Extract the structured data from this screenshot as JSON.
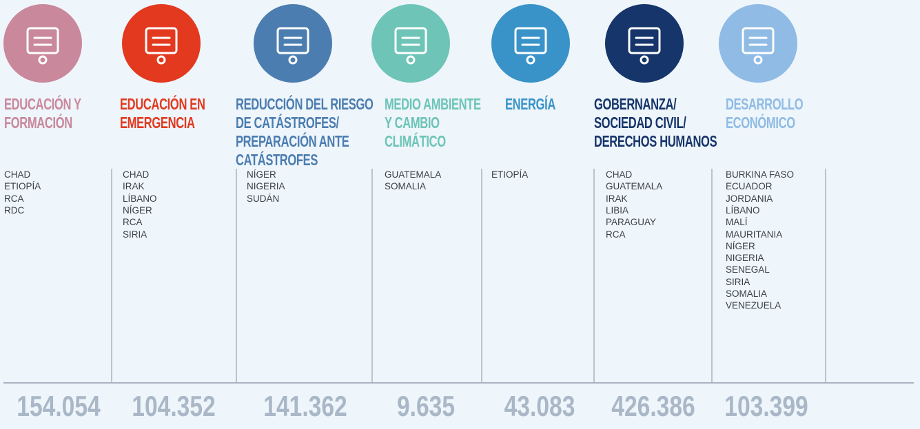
{
  "columns": [
    {
      "title": [
        "EDUCACIÓN Y",
        "FORMACIÓN"
      ],
      "color": "#c9889b",
      "countries": [
        "CHAD",
        "ETIOPÍA",
        "RCA",
        "RDC"
      ],
      "total": "154.054"
    },
    {
      "title": [
        "EDUCACIÓN EN",
        "EMERGENCIA"
      ],
      "color": "#e2391f",
      "countries": [
        "CHAD",
        "IRAK",
        "LÍBANO",
        "NÍGER",
        "RCA",
        "SIRIA"
      ],
      "total": "104.352"
    },
    {
      "title": [
        "REDUCCIÓN DEL RIESGO",
        "DE CATÁSTROFES/",
        "PREPARACIÓN ANTE",
        "CATÁSTROFES"
      ],
      "color": "#4b7db0",
      "countries": [
        "NÍGER",
        "NIGERIA",
        "SUDÁN"
      ],
      "total": "141.362"
    },
    {
      "title": [
        "MEDIO AMBIENTE",
        "Y CAMBIO",
        "CLIMÁTICO"
      ],
      "color": "#6dc4b7",
      "countries": [
        "GUATEMALA",
        "SOMALIA"
      ],
      "total": "9.635"
    },
    {
      "title": [
        "ENERGÍA"
      ],
      "color": "#3993c8",
      "countries": [
        "ETIOPÍA"
      ],
      "total": "43.083"
    },
    {
      "title": [
        "GOBERNANZA/",
        "SOCIEDAD CIVIL/",
        "DERECHOS HUMANOS"
      ],
      "color": "#16356a",
      "countries": [
        "CHAD",
        "GUATEMALA",
        "IRAK",
        "LIBIA",
        "PARAGUAY",
        "RCA"
      ],
      "total": "426.386"
    },
    {
      "title": [
        "DESARROLLO",
        "ECONÓMICO"
      ],
      "color": "#8fbbe5",
      "countries": [
        "BURKINA FASO",
        "ECUADOR",
        "JORDANIA",
        "LÍBANO",
        "MALÍ",
        "MAURITANIA",
        "NÍGER",
        "NIGERIA",
        "SENEGAL",
        "SIRIA",
        "SOMALIA",
        "VENEZUELA"
      ],
      "total": "103.399"
    }
  ]
}
